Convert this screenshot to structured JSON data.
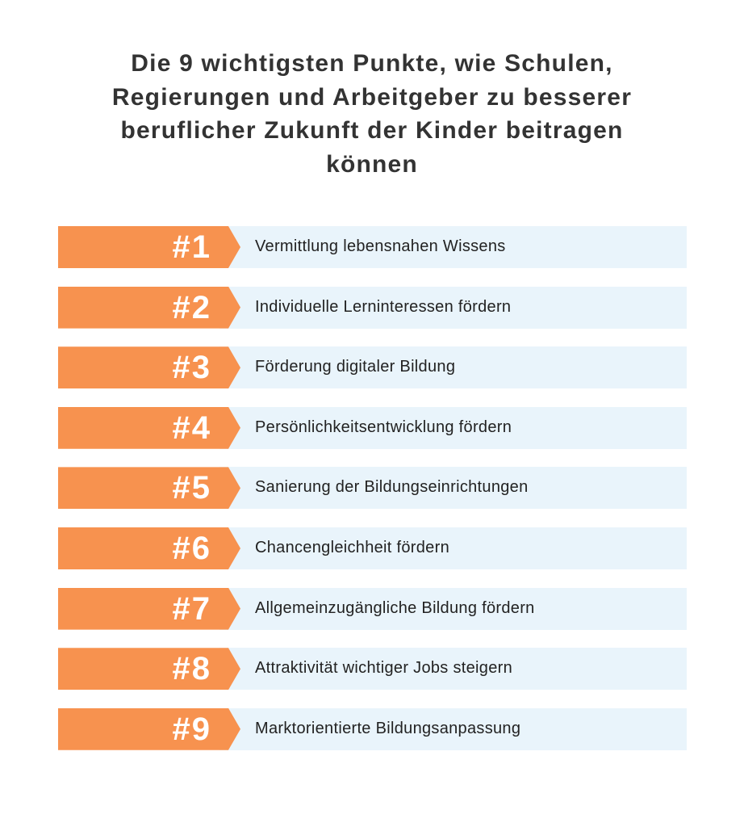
{
  "title": "Die 9 wichtigsten Punkte, wie Schulen, Regierungen und Arbeitgeber zu besserer beruflicher Zukunft der Kinder beitragen können",
  "items": [
    {
      "rank": "#1",
      "text": "Vermittlung lebensnahen Wissens"
    },
    {
      "rank": "#2",
      "text": "Individuelle Lerninteressen fördern"
    },
    {
      "rank": "#3",
      "text": "Förderung digitaler Bildung"
    },
    {
      "rank": "#4",
      "text": "Persönlichkeitsentwicklung fördern"
    },
    {
      "rank": "#5",
      "text": "Sanierung der Bildungseinrichtungen"
    },
    {
      "rank": "#6",
      "text": "Chancengleichheit fördern"
    },
    {
      "rank": "#7",
      "text": "Allgemeinzugängliche Bildung fördern"
    },
    {
      "rank": "#8",
      "text": "Attraktivität wichtiger Jobs steigern"
    },
    {
      "rank": "#9",
      "text": "Marktorientierte Bildungsanpassung"
    }
  ]
}
